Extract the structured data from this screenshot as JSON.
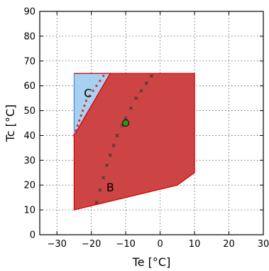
{
  "chart_data": {
    "type": "scatter",
    "title": "",
    "xlabel": "Te [°C]",
    "ylabel": "Tc [°C]",
    "xlim": [
      -35,
      30
    ],
    "ylim": [
      0,
      90
    ],
    "xticks": [
      -30,
      -20,
      -10,
      0,
      10,
      20,
      30
    ],
    "yticks": [
      0,
      10,
      20,
      30,
      40,
      50,
      60,
      70,
      80,
      90
    ],
    "grid": true,
    "regions": [
      {
        "label": "C",
        "fill": "#a8d0f0",
        "stroke": "#4a90d9",
        "polygon": [
          [
            -25,
            65
          ],
          [
            -14.5,
            65
          ],
          [
            -25,
            40
          ]
        ],
        "label_at": [
          -21,
          57
        ]
      },
      {
        "label": "B",
        "fill": "#cd4444",
        "stroke": "#e00000",
        "polygon": [
          [
            -25,
            65
          ],
          [
            10,
            65
          ],
          [
            10,
            25
          ],
          [
            5,
            20
          ],
          [
            -25,
            10
          ],
          [
            -25,
            40
          ],
          [
            -14.5,
            65
          ]
        ],
        "label_at": [
          -14.5,
          19
        ]
      }
    ],
    "series": [
      {
        "marker": "x",
        "color": "#333333",
        "points": [
          [
            -18.5,
            13
          ],
          [
            -17.5,
            18
          ],
          [
            -16.5,
            23
          ],
          [
            -15.5,
            28
          ],
          [
            -14.5,
            32
          ],
          [
            -13.5,
            36
          ],
          [
            -12.5,
            40
          ],
          [
            -11,
            44
          ],
          [
            -10,
            47
          ],
          [
            -8.5,
            51
          ],
          [
            -7,
            55
          ],
          [
            -5.5,
            58
          ],
          [
            -4,
            61
          ],
          [
            -2.5,
            64
          ]
        ]
      },
      {
        "marker": "dot",
        "color": "#cc3333",
        "points": [
          [
            -25,
            40
          ],
          [
            -24.5,
            42
          ],
          [
            -24,
            44
          ],
          [
            -23.5,
            46
          ],
          [
            -23,
            48
          ],
          [
            -22.5,
            50
          ],
          [
            -22,
            52
          ],
          [
            -21.5,
            54
          ],
          [
            -20.5,
            56
          ],
          [
            -19.5,
            58
          ],
          [
            -18.5,
            60
          ],
          [
            -17.5,
            62
          ],
          [
            -16.5,
            64
          ]
        ]
      },
      {
        "marker": "circle",
        "color": "#229922",
        "points": [
          [
            -10,
            45
          ]
        ]
      }
    ],
    "colors": {
      "axes": "#000000",
      "grid": "#555555"
    }
  }
}
